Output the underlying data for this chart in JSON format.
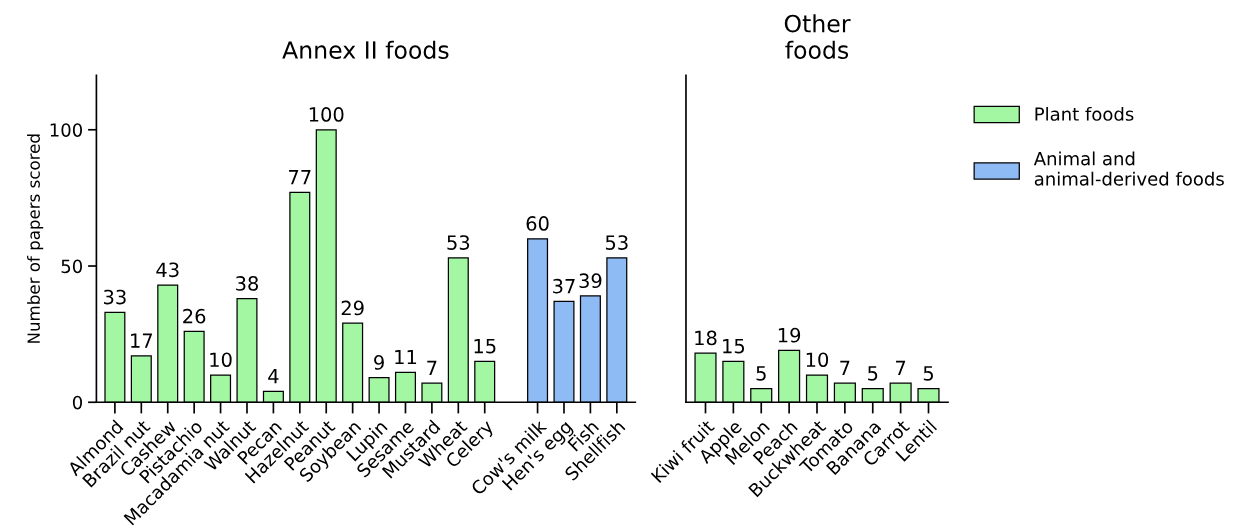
{
  "chart_data": [
    {
      "type": "bar",
      "title": "Annex II foods",
      "ylabel": "Number of papers scored",
      "categories": [
        "Almond",
        "Brazil nut",
        "Cashew",
        "Pistachio",
        "Macadamia nut",
        "Walnut",
        "Pecan",
        "Hazelnut",
        "Peanut",
        "Soybean",
        "Lupin",
        "Sesame",
        "Mustard",
        "Wheat",
        "Celery",
        null,
        "Cow's milk",
        "Hen's egg",
        "Fish",
        "Shellfish"
      ],
      "series": [
        {
          "name": "Plant foods",
          "color": "#a3f7a3",
          "values": [
            33,
            17,
            43,
            26,
            10,
            38,
            4,
            77,
            100,
            29,
            9,
            11,
            7,
            53,
            15,
            null,
            null,
            null,
            null,
            null
          ]
        },
        {
          "name": "Animal and\nanimal-derived foods",
          "color": "#8fbbf5",
          "values": [
            null,
            null,
            null,
            null,
            null,
            null,
            null,
            null,
            null,
            null,
            null,
            null,
            null,
            null,
            null,
            null,
            60,
            37,
            39,
            53
          ]
        }
      ],
      "ylim": [
        0,
        120
      ],
      "yticks": [
        0,
        50,
        100
      ],
      "data_labels": true,
      "grid": false,
      "legend": "right"
    },
    {
      "type": "bar",
      "title": "Other\nfoods",
      "categories": [
        "Kiwi fruit",
        "Apple",
        "Melon",
        "Peach",
        "Buckwheat",
        "Tomato",
        "Banana",
        "Carrot",
        "Lentil"
      ],
      "series": [
        {
          "color": "#a3f7a3",
          "values": [
            18,
            15,
            5,
            19,
            10,
            7,
            5,
            7,
            5
          ]
        }
      ],
      "ylim": [
        0,
        120
      ],
      "yticks": [
        0,
        50,
        100
      ],
      "tick_labels": "x",
      "data_labels": true,
      "grid": false
    }
  ]
}
